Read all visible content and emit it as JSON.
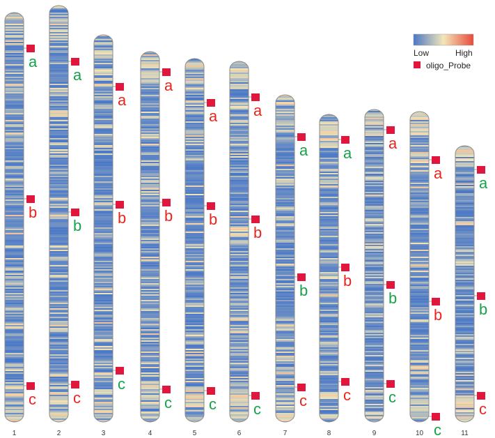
{
  "colors": {
    "low": "#4a78c7",
    "mid": "#f3e6b8",
    "high": "#e84a3a",
    "probe_marker": "#e0163c",
    "letter_red": "#e8261f",
    "letter_green": "#16a34a",
    "outline": "#8a8a8a"
  },
  "legend": {
    "low_label": "Low",
    "high_label": "High",
    "probe_label": "oligo_Probe"
  },
  "chromosomes": [
    {
      "label": "1",
      "probes": [
        {
          "letter": "a",
          "color": "green"
        },
        {
          "letter": "b",
          "color": "red"
        },
        {
          "letter": "c",
          "color": "red"
        }
      ]
    },
    {
      "label": "2",
      "probes": [
        {
          "letter": "a",
          "color": "green"
        },
        {
          "letter": "b",
          "color": "green"
        },
        {
          "letter": "c",
          "color": "red"
        }
      ]
    },
    {
      "label": "3",
      "probes": [
        {
          "letter": "a",
          "color": "red"
        },
        {
          "letter": "b",
          "color": "red"
        },
        {
          "letter": "c",
          "color": "green"
        }
      ]
    },
    {
      "label": "4",
      "probes": [
        {
          "letter": "a",
          "color": "red"
        },
        {
          "letter": "b",
          "color": "red"
        },
        {
          "letter": "c",
          "color": "green"
        }
      ]
    },
    {
      "label": "5",
      "probes": [
        {
          "letter": "a",
          "color": "red"
        },
        {
          "letter": "b",
          "color": "red"
        },
        {
          "letter": "c",
          "color": "green"
        }
      ]
    },
    {
      "label": "6",
      "probes": [
        {
          "letter": "a",
          "color": "red"
        },
        {
          "letter": "b",
          "color": "red"
        },
        {
          "letter": "c",
          "color": "green"
        }
      ]
    },
    {
      "label": "7",
      "probes": [
        {
          "letter": "a",
          "color": "green"
        },
        {
          "letter": "b",
          "color": "green"
        },
        {
          "letter": "c",
          "color": "red"
        }
      ]
    },
    {
      "label": "8",
      "probes": [
        {
          "letter": "a",
          "color": "green"
        },
        {
          "letter": "b",
          "color": "red"
        },
        {
          "letter": "c",
          "color": "red"
        }
      ]
    },
    {
      "label": "9",
      "probes": [
        {
          "letter": "a",
          "color": "red"
        },
        {
          "letter": "b",
          "color": "green"
        },
        {
          "letter": "c",
          "color": "green"
        }
      ]
    },
    {
      "label": "10",
      "probes": [
        {
          "letter": "a",
          "color": "red"
        },
        {
          "letter": "b",
          "color": "red"
        },
        {
          "letter": "c",
          "color": "green"
        }
      ]
    },
    {
      "label": "11",
      "probes": [
        {
          "letter": "a",
          "color": "green"
        },
        {
          "letter": "b",
          "color": "green"
        },
        {
          "letter": "c",
          "color": "red"
        }
      ]
    }
  ]
}
